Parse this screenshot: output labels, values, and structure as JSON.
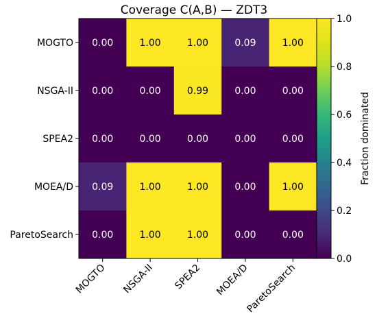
{
  "chart_data": {
    "type": "heatmap",
    "title": "Coverage C(A,B) — ZDT3",
    "row_labels": [
      "MOGTO",
      "NSGA-II",
      "SPEA2",
      "MOEA/D",
      "ParetoSearch"
    ],
    "col_labels": [
      "MOGTO",
      "NSGA-II",
      "SPEA2",
      "MOEA/D",
      "ParetoSearch"
    ],
    "values": [
      [
        0.0,
        1.0,
        1.0,
        0.09,
        1.0
      ],
      [
        0.0,
        0.0,
        0.99,
        0.0,
        0.0
      ],
      [
        0.0,
        0.0,
        0.0,
        0.0,
        0.0
      ],
      [
        0.09,
        1.0,
        1.0,
        0.0,
        1.0
      ],
      [
        0.0,
        1.0,
        1.0,
        0.0,
        0.0
      ]
    ],
    "value_format_decimals": 2,
    "colormap": "viridis",
    "vmin": 0.0,
    "vmax": 1.0,
    "colorbar": {
      "label": "Fraction dominated",
      "ticks": [
        0.0,
        0.2,
        0.4,
        0.6,
        0.8,
        1.0
      ],
      "tick_labels": [
        "0.0",
        "0.2",
        "0.4",
        "0.6",
        "0.8",
        "1.0"
      ]
    },
    "xlabel": "",
    "ylabel": "",
    "grid": false
  },
  "colors": {
    "low": "#440154",
    "high": "#fde725",
    "dark_text": "#000000",
    "light_text": "#ffffff"
  }
}
